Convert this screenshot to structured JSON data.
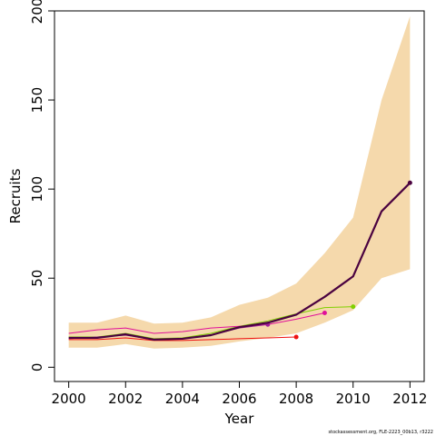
{
  "chart_data": {
    "type": "line",
    "xlabel": "Year",
    "ylabel": "Recruits",
    "xlim": [
      1999.5,
      2012.5
    ],
    "ylim": [
      -8,
      200
    ],
    "xticks": [
      2000,
      2002,
      2004,
      2006,
      2008,
      2010,
      2012
    ],
    "yticks": [
      0,
      50,
      100,
      150,
      200
    ],
    "grid": false,
    "band": {
      "x": [
        2000,
        2001,
        2002,
        2003,
        2004,
        2005,
        2006,
        2007,
        2008,
        2009,
        2010,
        2011,
        2012
      ],
      "lower": [
        11,
        11,
        13,
        10.5,
        11,
        12,
        14.5,
        16.5,
        19,
        25,
        32,
        50,
        55
      ],
      "upper": [
        25,
        25,
        29,
        24.5,
        25,
        28,
        35,
        39,
        47,
        64,
        84,
        150,
        197
      ]
    },
    "series": [
      {
        "color": "#4a0240",
        "width": 2.2,
        "end_point": true,
        "x": [
          2000,
          2001,
          2002,
          2003,
          2004,
          2005,
          2006,
          2007,
          2008,
          2009,
          2010,
          2011,
          2012
        ],
        "y": [
          16.5,
          16.5,
          18.5,
          15.5,
          16,
          18,
          22.5,
          25,
          29.5,
          39.5,
          51,
          87.5,
          103.5
        ]
      },
      {
        "color": "#7fd000",
        "width": 1,
        "end_point": true,
        "x": [
          2000,
          2001,
          2002,
          2003,
          2004,
          2005,
          2006,
          2007,
          2008,
          2009,
          2010
        ],
        "y": [
          17,
          17,
          19,
          16,
          16.5,
          19,
          23,
          26,
          30,
          33.5,
          34
        ]
      },
      {
        "color": "#e0109a",
        "width": 1,
        "end_point": true,
        "x": [
          2000,
          2001,
          2002,
          2003,
          2004,
          2005,
          2006,
          2007,
          2008,
          2009
        ],
        "y": [
          19,
          21,
          22,
          19,
          20,
          22,
          23,
          24,
          27,
          30.5
        ]
      },
      {
        "color": "#a0209a",
        "width": 1,
        "end_point": true,
        "x": [
          2000,
          2001,
          2002,
          2003,
          2004,
          2005,
          2006,
          2007
        ],
        "y": [
          16,
          17,
          18,
          15.5,
          16,
          18,
          22,
          24
        ]
      },
      {
        "color": "#ee1111",
        "width": 1,
        "end_point": true,
        "x": [
          2000,
          2001,
          2002,
          2003,
          2004,
          2005,
          2006,
          2007,
          2008
        ],
        "y": [
          15.5,
          15.5,
          16.5,
          15,
          15,
          15.5,
          16,
          16.5,
          17
        ]
      }
    ],
    "band_color": "#f5d9ac",
    "footnote": "stockassessment.org, FLE-2223_00b13, r3222"
  }
}
